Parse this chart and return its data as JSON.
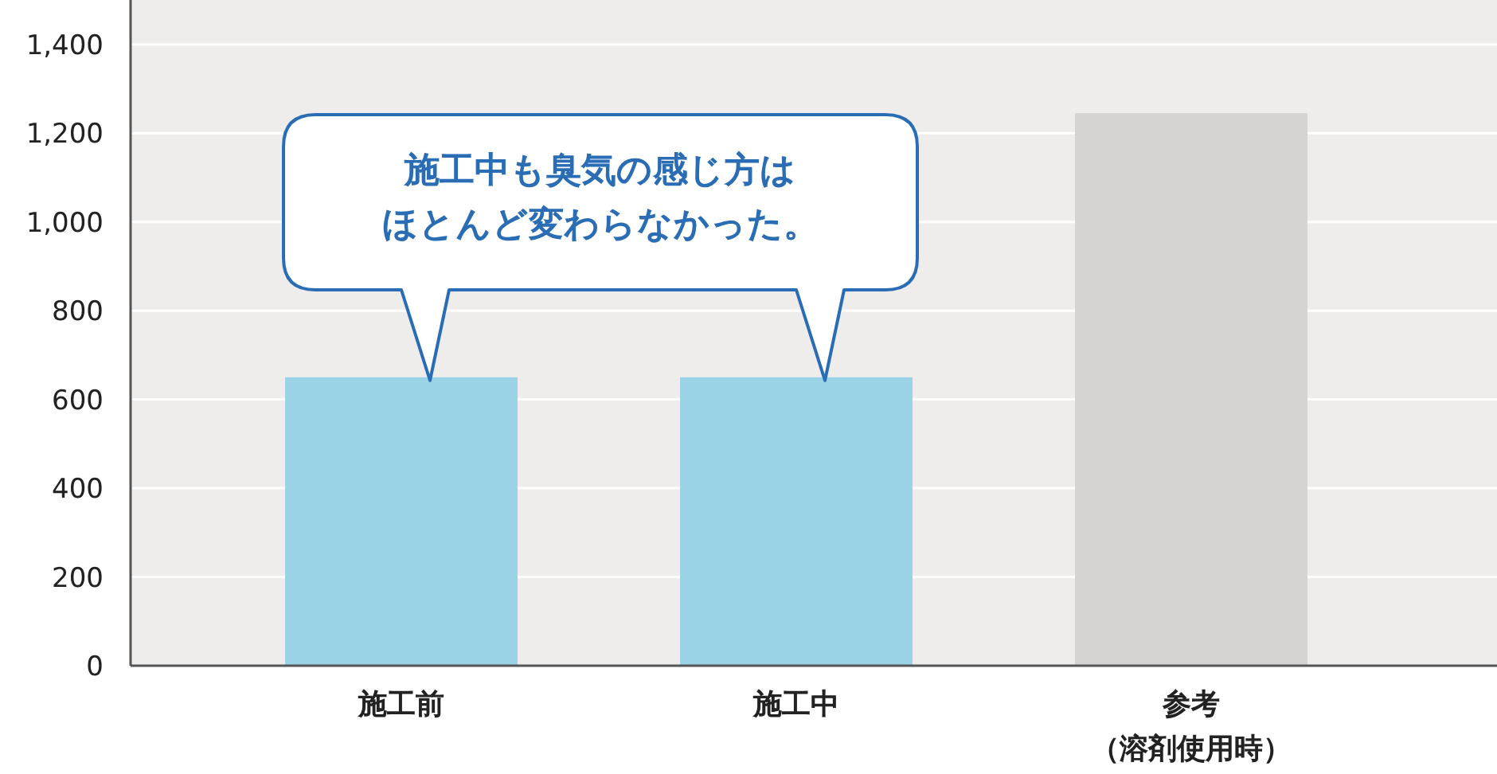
{
  "chart_data": {
    "type": "bar",
    "categories": [
      "施工前",
      "施工中",
      "参考（溶剤使用時）"
    ],
    "values": [
      650,
      650,
      1245
    ],
    "colors": [
      "#9bd3e6",
      "#9bd3e6",
      "#d6d4d2"
    ],
    "ylim": [
      0,
      1500
    ],
    "yticks": [
      0,
      200,
      400,
      600,
      800,
      {
        "value": 1000,
        "label": "1,000"
      },
      {
        "value": 1200,
        "label": "1,200"
      },
      {
        "value": 1400,
        "label": "1,400"
      }
    ],
    "grid": "y",
    "annotations": [
      "施工中も臭気の感じ方はほとんど変わらなかった。"
    ]
  }
}
